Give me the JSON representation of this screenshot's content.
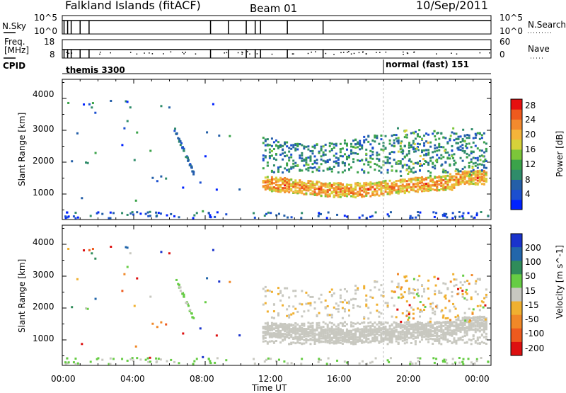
{
  "header": {
    "station": "Falkland Islands (fitACF)",
    "beam": "Beam 01",
    "date": "10/Sep/2011"
  },
  "strip_labels": {
    "nsky": "N.Sky",
    "nsky_ticks": [
      "10^5",
      "10^0"
    ],
    "nsearch": "N.Search",
    "freq_label_1": "Freq.",
    "freq_label_2": "[MHz]",
    "freq_ticks": [
      "18",
      "8"
    ],
    "nave": "Nave",
    "nave_ticks": [
      "60",
      "0"
    ],
    "cpid": "CPID",
    "mode_1": "themis 3300",
    "mode_2": "normal (fast) 151"
  },
  "chart_data": [
    {
      "type": "heatmap",
      "title": "",
      "xlabel": "Time UT",
      "ylabel": "Slant Range [km]",
      "x_ticks": [
        "00:00",
        "04:00",
        "08:00",
        "12:00",
        "16:00",
        "20:00",
        "00:00"
      ],
      "y_ticks": [
        "1000",
        "2000",
        "3000",
        "4000"
      ],
      "xlim_hours": [
        0,
        24
      ],
      "ylim_km": [
        200,
        4600
      ],
      "colorbar": {
        "label": "Power [dB]",
        "ticks": [
          "4",
          "8",
          "12",
          "16",
          "20",
          "24",
          "28"
        ],
        "range": [
          0,
          30
        ],
        "colors": [
          "#0022ff",
          "#1b4fd0",
          "#245fa8",
          "#2f8c6a",
          "#3ba34a",
          "#7cc63a",
          "#d6d23a",
          "#f4b43a",
          "#f28a2e",
          "#ee5a1e",
          "#e61010"
        ]
      },
      "features": [
        {
          "name": "F-region band",
          "t_start_h": 11.2,
          "t_end_h": 23.7,
          "range_start_km": 1150,
          "range_end_km": 1700,
          "power_db": 24
        },
        {
          "name": "upper scatter",
          "t_start_h": 11.0,
          "t_end_h": 23.9,
          "range_start_km": 1500,
          "range_end_km": 3000,
          "power_db": 8
        },
        {
          "name": "arc",
          "t_start_h": 6.2,
          "t_end_h": 7.3,
          "range_start_km": 1700,
          "range_end_km": 3100,
          "power_db": 6
        }
      ]
    },
    {
      "type": "heatmap",
      "title": "",
      "xlabel": "Time UT",
      "ylabel": "Slant Range [km]",
      "x_ticks": [
        "00:00",
        "04:00",
        "08:00",
        "12:00",
        "16:00",
        "20:00",
        "00:00"
      ],
      "y_ticks": [
        "1000",
        "2000",
        "3000",
        "4000"
      ],
      "xlim_hours": [
        0,
        24
      ],
      "ylim_km": [
        200,
        4600
      ],
      "colorbar": {
        "label": "Velocity [m s^-1]",
        "ticks": [
          "200",
          "100",
          "50",
          "15",
          "-15",
          "-50",
          "-100",
          "-200"
        ],
        "colors": [
          "#1a33cc",
          "#2266aa",
          "#2f8c5a",
          "#66cc44",
          "#c8c8c0",
          "#f0b030",
          "#f08828",
          "#ee5a1e",
          "#dd1010"
        ]
      },
      "features": [
        {
          "name": "ground scatter",
          "t_start_h": 11.2,
          "t_end_h": 23.9,
          "range_start_km": 900,
          "range_end_km": 2200,
          "velocity": 0
        },
        {
          "name": "dusk flows",
          "t_start_h": 18.5,
          "t_end_h": 23.9,
          "range_start_km": 1500,
          "range_end_km": 3100,
          "velocity": -60
        }
      ]
    }
  ]
}
